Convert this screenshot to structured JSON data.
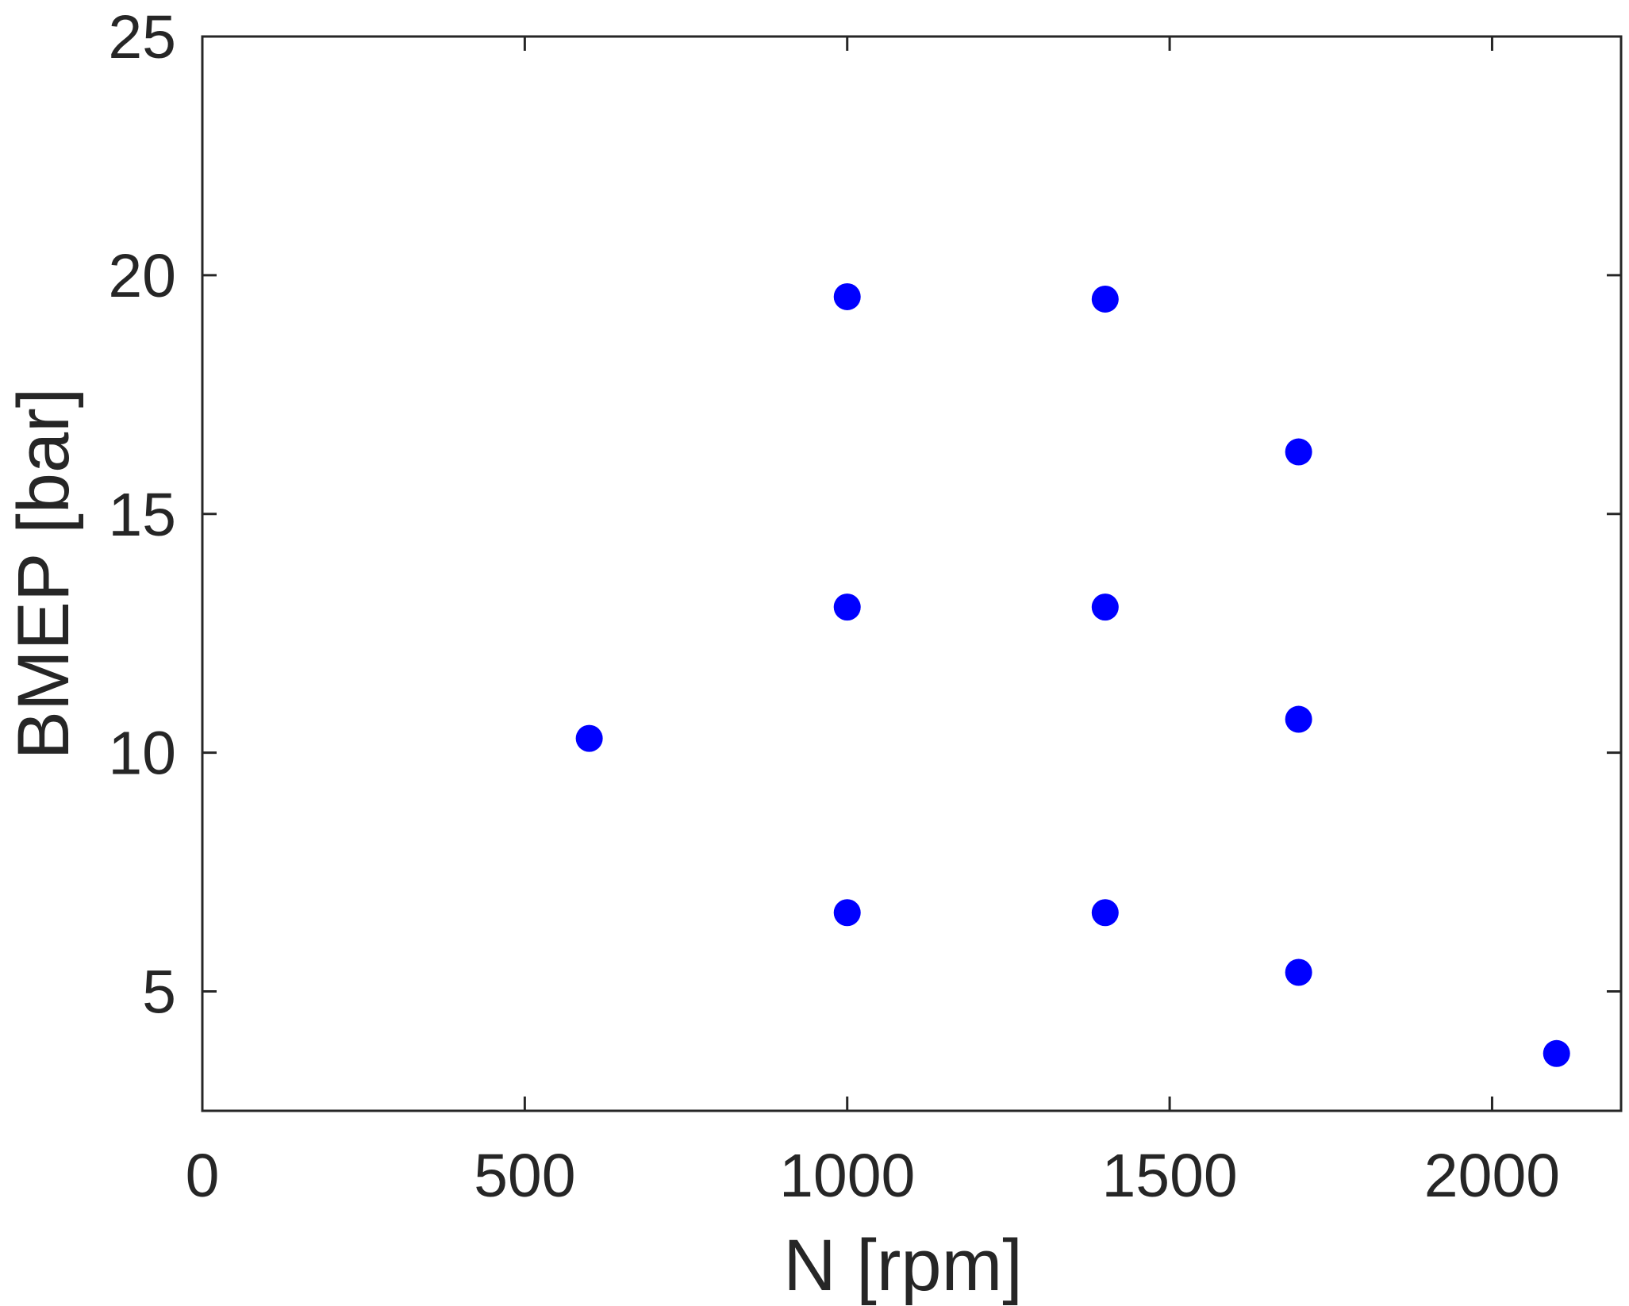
{
  "chart_data": {
    "type": "scatter",
    "title": "",
    "xlabel": "N [rpm]",
    "ylabel": "BMEP [bar]",
    "xlim": [
      0,
      2200
    ],
    "ylim": [
      2.5,
      25
    ],
    "xticks": [
      0,
      500,
      1000,
      1500,
      2000
    ],
    "yticks": [
      5,
      10,
      15,
      20,
      25
    ],
    "xtick_labels": [
      "0",
      "500",
      "1000",
      "1500",
      "2000"
    ],
    "ytick_labels": [
      "5",
      "10",
      "15",
      "20",
      "25"
    ],
    "grid": false,
    "legend": "none",
    "marker_color": "#0000ff",
    "series": [
      {
        "x": [
          600,
          1000,
          1000,
          1000,
          1400,
          1400,
          1400,
          1700,
          1700,
          1700,
          2100
        ],
        "y": [
          10.3,
          19.55,
          13.05,
          6.65,
          19.5,
          13.05,
          6.65,
          16.3,
          10.7,
          5.4,
          3.7
        ]
      }
    ]
  }
}
